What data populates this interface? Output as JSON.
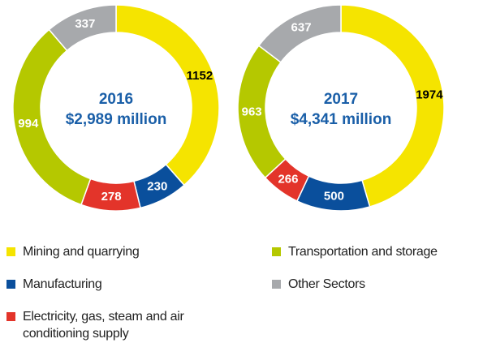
{
  "chart_data": [
    {
      "type": "donut",
      "title": "2016",
      "subtitle": "$2,989 million",
      "values": [
        1152,
        230,
        278,
        994,
        337
      ]
    },
    {
      "type": "donut",
      "title": "2017",
      "subtitle": "$4,341 million",
      "values": [
        1974,
        500,
        266,
        963,
        637
      ]
    }
  ],
  "legend": {
    "categories": [
      "Mining and quarrying",
      "Manufacturing",
      "Electricity, gas, steam and air conditioning supply",
      "Transportation and storage",
      "Other Sectors"
    ],
    "colors": [
      "#f5e400",
      "#0a4f9c",
      "#e3342a",
      "#b5c800",
      "#a7a9ac"
    ]
  }
}
